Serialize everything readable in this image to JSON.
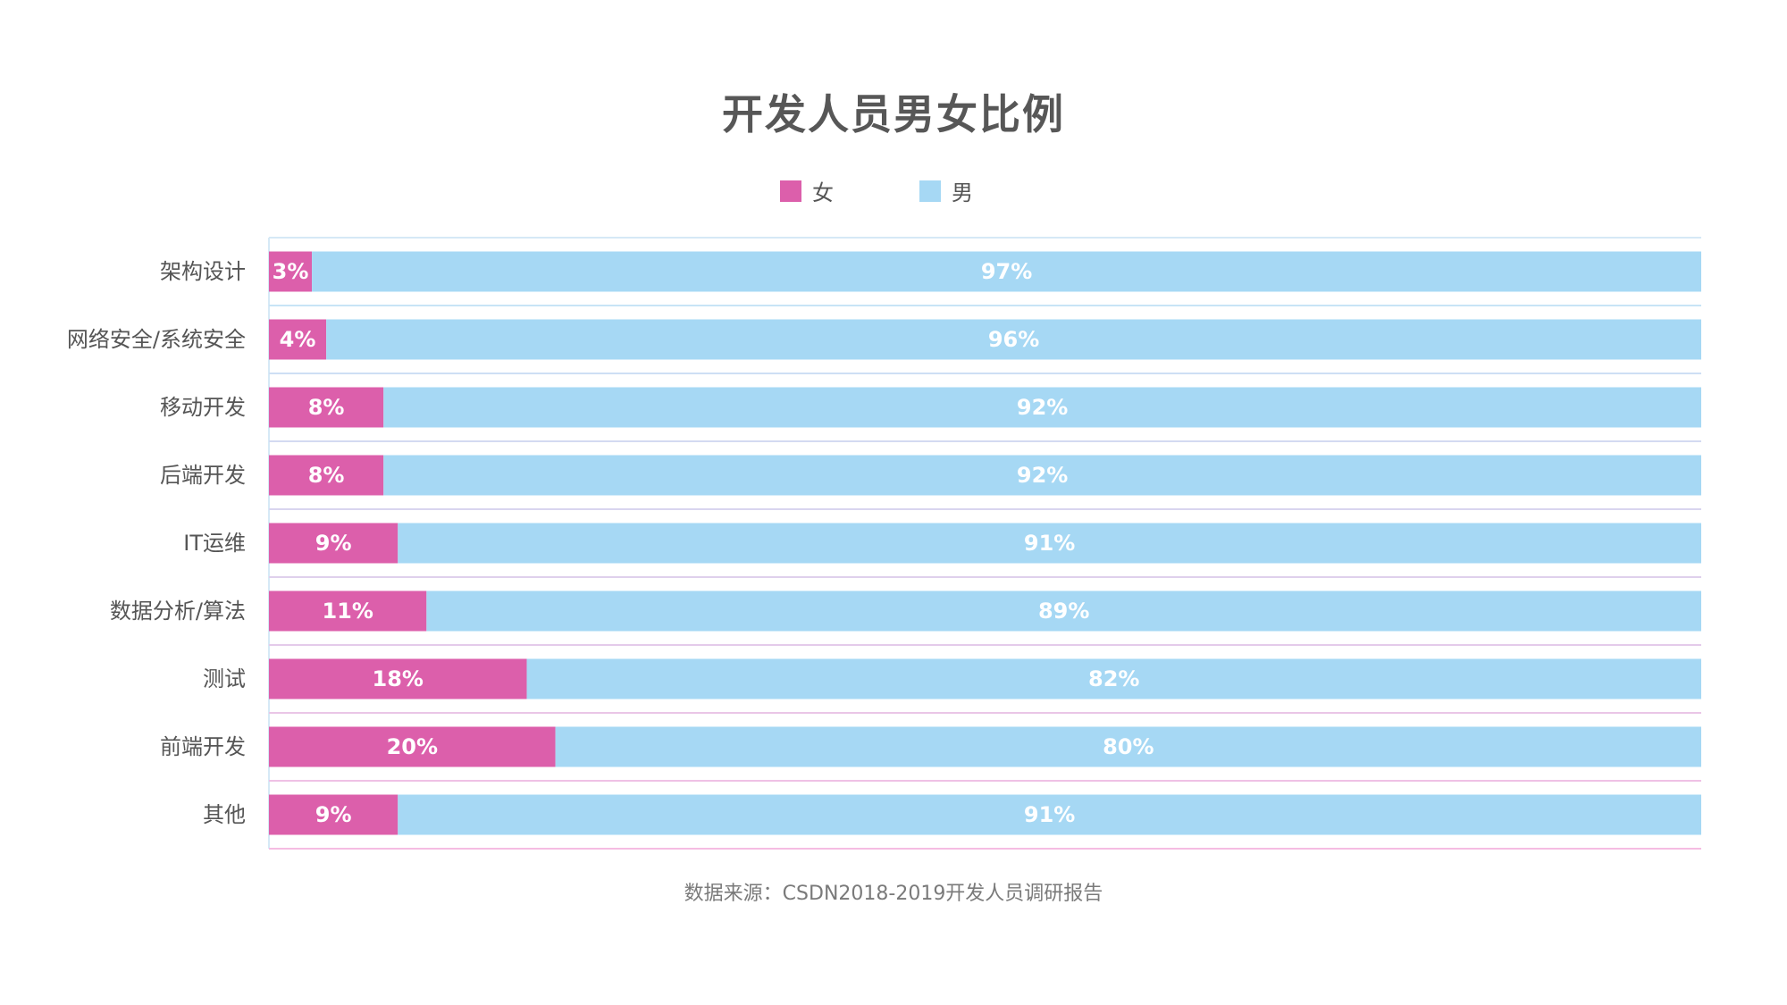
{
  "title": "开发人员男女比例",
  "legend": [
    {
      "label": "女",
      "color": "#dc5fab"
    },
    {
      "label": "男",
      "color": "#a6d8f4"
    }
  ],
  "source": "数据来源：CSDN2018-2019开发人员调研报告",
  "chart_data": {
    "type": "bar",
    "orientation": "horizontal",
    "stacked": true,
    "title": "开发人员男女比例",
    "xlim": [
      0,
      100
    ],
    "legend_position": "top",
    "categories": [
      "架构设计",
      "网络安全/系统安全",
      "移动开发",
      "后端开发",
      "IT运维",
      "数据分析/算法",
      "测试",
      "前端开发",
      "其他"
    ],
    "series": [
      {
        "name": "女",
        "color": "#dc5fab",
        "values": [
          3,
          4,
          8,
          8,
          9,
          11,
          18,
          20,
          9
        ],
        "labels": [
          "3%",
          "4%",
          "8%",
          "8%",
          "9%",
          "11%",
          "18%",
          "20%",
          "9%"
        ]
      },
      {
        "name": "男",
        "color": "#a6d8f4",
        "values": [
          97,
          96,
          92,
          92,
          91,
          89,
          82,
          80,
          91
        ],
        "labels": [
          "97%",
          "96%",
          "92%",
          "92%",
          "91%",
          "89%",
          "82%",
          "80%",
          "91%"
        ]
      }
    ]
  }
}
